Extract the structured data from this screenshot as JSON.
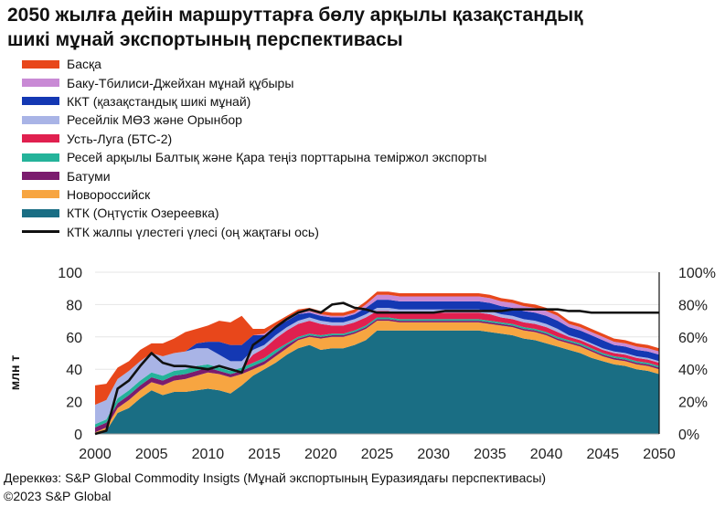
{
  "title": {
    "line1": "2050 жылға дейін маршруттарға бөлу арқылы қазақстандық",
    "line2": "шикі мұнай экспортының перспективасы"
  },
  "source": {
    "line1": "Дереккөз: S&P Global Commodity Insigts (Мұнай экспортының Еуразиядағы перспективасы)",
    "line2": "©2023 S&P Global"
  },
  "chart_data": {
    "type": "area",
    "title": "2050 жылға дейін маршруттарға бөлу арқылы қазақстандық шикі мұнай экспортының перспективасы",
    "ylabel": "млн т",
    "ylim": [
      0,
      100
    ],
    "yticks": [
      "0",
      "20",
      "40",
      "60",
      "80",
      "100"
    ],
    "y2lim": [
      0,
      100
    ],
    "y2ticks": [
      "0%",
      "20%",
      "40%",
      "60%",
      "80%",
      "100%"
    ],
    "xticks": [
      "2000",
      "2005",
      "2010",
      "2015",
      "2020",
      "2025",
      "2030",
      "2035",
      "2040",
      "2045",
      "2050"
    ],
    "x": [
      2000,
      2001,
      2002,
      2003,
      2004,
      2005,
      2006,
      2007,
      2008,
      2009,
      2010,
      2011,
      2012,
      2013,
      2014,
      2015,
      2016,
      2017,
      2018,
      2019,
      2020,
      2021,
      2022,
      2023,
      2024,
      2025,
      2026,
      2027,
      2028,
      2029,
      2030,
      2031,
      2032,
      2033,
      2034,
      2035,
      2036,
      2037,
      2038,
      2039,
      2040,
      2041,
      2042,
      2043,
      2044,
      2045,
      2046,
      2047,
      2048,
      2049,
      2050
    ],
    "legend_position": "top-left",
    "series": [
      {
        "name": "КТК (Оңтүстік Озереевка)",
        "color": "#1a6e84",
        "values": [
          0,
          2,
          13,
          16,
          22,
          27,
          24,
          26,
          26,
          27,
          28,
          27,
          25,
          30,
          36,
          40,
          44,
          49,
          53,
          55,
          52,
          53,
          53,
          55,
          58,
          64,
          64,
          64,
          64,
          64,
          64,
          64,
          64,
          64,
          64,
          63,
          62,
          61,
          59,
          58,
          56,
          54,
          52,
          50,
          47,
          45,
          43,
          42,
          40,
          39,
          37
        ]
      },
      {
        "name": "Новороссийск",
        "color": "#f7a541",
        "values": [
          1,
          2,
          3,
          5,
          5,
          5,
          6,
          7,
          8,
          9,
          10,
          10,
          10,
          7,
          4,
          3,
          4,
          4,
          5,
          5,
          7,
          7,
          7,
          7,
          7,
          6,
          6,
          5,
          5,
          5,
          5,
          5,
          5,
          5,
          5,
          5,
          5,
          5,
          5,
          5,
          5,
          4,
          4,
          4,
          4,
          3,
          3,
          3,
          3,
          3,
          3
        ]
      },
      {
        "name": "Батуми",
        "color": "#7b1c6e",
        "values": [
          3,
          3,
          3,
          3,
          3,
          3,
          3,
          3,
          3,
          3,
          3,
          2,
          2,
          2,
          2,
          2,
          2,
          2,
          1,
          1,
          1,
          1,
          1,
          1,
          1,
          1,
          1,
          1,
          1,
          1,
          1,
          1,
          1,
          1,
          1,
          1,
          1,
          1,
          1,
          1,
          1,
          1,
          1,
          1,
          1,
          1,
          1,
          1,
          1,
          1,
          1
        ]
      },
      {
        "name": "Ресей арқылы Балтық және Қара теңіз порттарына теміржол экспорты",
        "color": "#24b39a",
        "values": [
          2,
          2,
          3,
          3,
          3,
          3,
          3,
          3,
          3,
          3,
          2,
          2,
          2,
          2,
          2,
          2,
          2,
          1,
          1,
          1,
          1,
          1,
          1,
          1,
          1,
          1,
          1,
          1,
          1,
          1,
          1,
          1,
          1,
          1,
          1,
          1,
          1,
          1,
          1,
          1,
          1,
          1,
          1,
          1,
          1,
          1,
          1,
          1,
          1,
          1,
          1
        ]
      },
      {
        "name": "Усть-Луга (БТС-2)",
        "color": "#e0204f",
        "values": [
          0,
          0,
          0,
          0,
          0,
          0,
          0,
          0,
          0,
          0,
          0,
          0,
          0,
          0,
          5,
          6,
          7,
          8,
          8,
          8,
          7,
          5,
          5,
          5,
          5,
          4,
          4,
          4,
          4,
          4,
          4,
          4,
          4,
          4,
          4,
          4,
          3,
          3,
          3,
          3,
          3,
          3,
          2,
          2,
          2,
          2,
          2,
          2,
          2,
          2,
          2
        ]
      },
      {
        "name": "Ресейлік МӨЗ және Орынбор",
        "color": "#a9b4e6",
        "values": [
          12,
          12,
          12,
          12,
          12,
          12,
          12,
          11,
          11,
          11,
          10,
          8,
          6,
          4,
          3,
          2,
          2,
          2,
          2,
          2,
          2,
          2,
          2,
          2,
          2,
          2,
          2,
          2,
          2,
          2,
          2,
          2,
          2,
          2,
          2,
          2,
          2,
          2,
          2,
          2,
          2,
          2,
          1,
          1,
          1,
          1,
          1,
          1,
          1,
          1,
          1
        ]
      },
      {
        "name": "ККТ (қазақстандық шикі мұнай)",
        "color": "#1438b3",
        "values": [
          0,
          0,
          0,
          0,
          0,
          0,
          0,
          0,
          0,
          3,
          4,
          8,
          10,
          10,
          9,
          6,
          5,
          4,
          4,
          3,
          3,
          3,
          3,
          3,
          4,
          5,
          5,
          5,
          5,
          5,
          5,
          5,
          5,
          5,
          5,
          5,
          5,
          5,
          5,
          5,
          5,
          5,
          5,
          5,
          5,
          5,
          4,
          4,
          4,
          4,
          4
        ]
      },
      {
        "name": "Баку-Тбилиси-Джейхан мұнай құбыры",
        "color": "#c98ad5",
        "values": [
          0,
          0,
          0,
          0,
          0,
          0,
          0,
          0,
          0,
          0,
          0,
          0,
          0,
          0,
          0,
          1,
          1,
          1,
          1,
          1,
          1,
          1,
          1,
          1,
          2,
          3,
          3,
          3,
          3,
          3,
          3,
          3,
          3,
          3,
          3,
          3,
          3,
          3,
          3,
          3,
          3,
          3,
          2,
          2,
          2,
          2,
          2,
          2,
          2,
          2,
          2
        ]
      },
      {
        "name": "Басқа",
        "color": "#e8471b",
        "values": [
          12,
          10,
          7,
          6,
          7,
          6,
          8,
          9,
          12,
          9,
          10,
          13,
          14,
          18,
          4,
          3,
          2,
          2,
          2,
          2,
          2,
          2,
          2,
          2,
          2,
          2,
          2,
          2,
          2,
          2,
          2,
          2,
          2,
          2,
          2,
          2,
          2,
          2,
          2,
          2,
          2,
          2,
          2,
          2,
          2,
          2,
          2,
          2,
          2,
          2,
          2
        ]
      }
    ],
    "share_line": {
      "name": "КТК жалпы үлестегі үлесі (оң жақтағы ось)",
      "color": "#111111",
      "axis": "right",
      "values": [
        0,
        2,
        28,
        33,
        42,
        50,
        44,
        42,
        42,
        41,
        40,
        42,
        40,
        38,
        55,
        60,
        66,
        71,
        75,
        77,
        75,
        80,
        81,
        78,
        77,
        75,
        75,
        75,
        75,
        75,
        75,
        76,
        76,
        76,
        76,
        76,
        76,
        77,
        77,
        77,
        77,
        77,
        76,
        76,
        75,
        75,
        75,
        75,
        75,
        75,
        75
      ]
    }
  }
}
